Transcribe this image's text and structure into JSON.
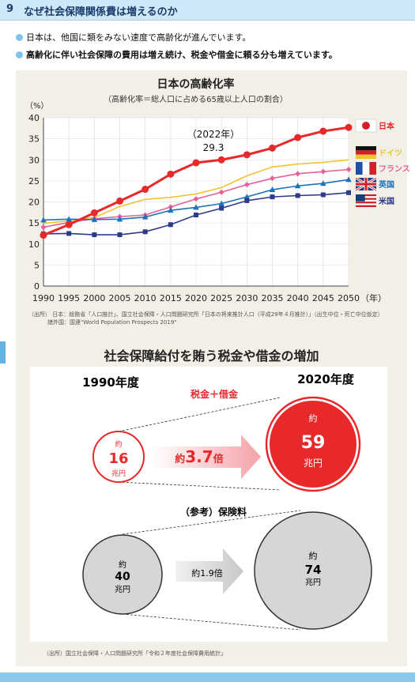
{
  "header": {
    "number": "9",
    "title": "なぜ社会保障関係費は増えるのか"
  },
  "bullets": [
    "日本は、他国に類をみない速度で高齢化が進んでいます。",
    "高齢化に伴い社会保障の費用は増え続け、税金や借金に頼る分も増えています。"
  ],
  "colors": {
    "accent_blue": "#7fc3ea",
    "japan_red": "#e8292c",
    "panel_bg": "#f2efe7"
  },
  "chart_data": {
    "type": "line",
    "title": "日本の高齢化率",
    "subtitle": "（高齢化率＝総人口に占める65歳以上人口の割合）",
    "ylabel": "（%）",
    "xlabel": "（年）",
    "ylim": [
      0,
      40
    ],
    "y_ticks": [
      0,
      5,
      10,
      15,
      20,
      25,
      30,
      35,
      40
    ],
    "x": [
      1990,
      1995,
      2000,
      2005,
      2010,
      2015,
      2020,
      2025,
      2030,
      2035,
      2040,
      2045,
      2050
    ],
    "series": [
      {
        "name": "日本",
        "color": "#e8292c",
        "marker": "circle",
        "values": [
          12.1,
          14.6,
          17.4,
          20.2,
          23.0,
          26.6,
          29.3,
          30.0,
          31.2,
          32.8,
          35.3,
          36.8,
          37.7
        ]
      },
      {
        "name": "ドイツ",
        "color": "#f2c230",
        "marker": "none",
        "values": [
          14.9,
          15.5,
          16.3,
          18.9,
          20.6,
          21.1,
          21.9,
          23.4,
          26.2,
          28.3,
          29.0,
          29.4,
          30.0
        ]
      },
      {
        "name": "フランス",
        "color": "#e6609a",
        "marker": "diamond",
        "values": [
          14.0,
          15.1,
          16.0,
          16.5,
          16.9,
          18.8,
          20.7,
          22.3,
          24.1,
          25.6,
          26.7,
          27.2,
          27.7
        ]
      },
      {
        "name": "英国",
        "color": "#1e73b8",
        "marker": "triangle",
        "values": [
          15.7,
          15.9,
          15.8,
          15.9,
          16.4,
          18.0,
          18.7,
          19.6,
          21.2,
          22.9,
          23.8,
          24.4,
          25.3
        ]
      },
      {
        "name": "米国",
        "color": "#2d3a8c",
        "marker": "square",
        "values": [
          12.4,
          12.5,
          12.2,
          12.2,
          12.9,
          14.6,
          16.9,
          18.5,
          20.3,
          21.2,
          21.5,
          21.7,
          22.2
        ]
      }
    ],
    "annotation": {
      "year_label": "（2022年）",
      "value_label": "29.3"
    }
  },
  "chart_source": {
    "line1": "（出所） 日本：総務省「人口推計」、国立社会保障・人口問題研究所「日本の将来推計人口（平成29年４月推計）」（出生中位・死亡中位仮定）",
    "line2": "諸外国：国連\"World Population Prospects 2019\""
  },
  "section2": {
    "title": "社会保障給付を賄う税金や借金の増加",
    "year_left": "1990年度",
    "year_right": "2020年度",
    "tax_label": "税金＋借金",
    "left_circle": {
      "approx": "約",
      "value": "16",
      "unit": "兆円"
    },
    "right_circle": {
      "approx": "約",
      "value": "59",
      "unit": "兆円"
    },
    "arrow_text": {
      "approx": "約",
      "value": "3.7",
      "unit": "倍"
    },
    "reference_label": "（参考）保険料",
    "ref_left_circle": {
      "approx": "約",
      "value": "40",
      "unit": "兆円"
    },
    "ref_right_circle": {
      "approx": "約",
      "value": "74",
      "unit": "兆円"
    },
    "ref_arrow_text": "約1.9倍",
    "source": "（出所）国立社会保障・人口問題研究所「令和２年度社会保障費用統計」"
  }
}
